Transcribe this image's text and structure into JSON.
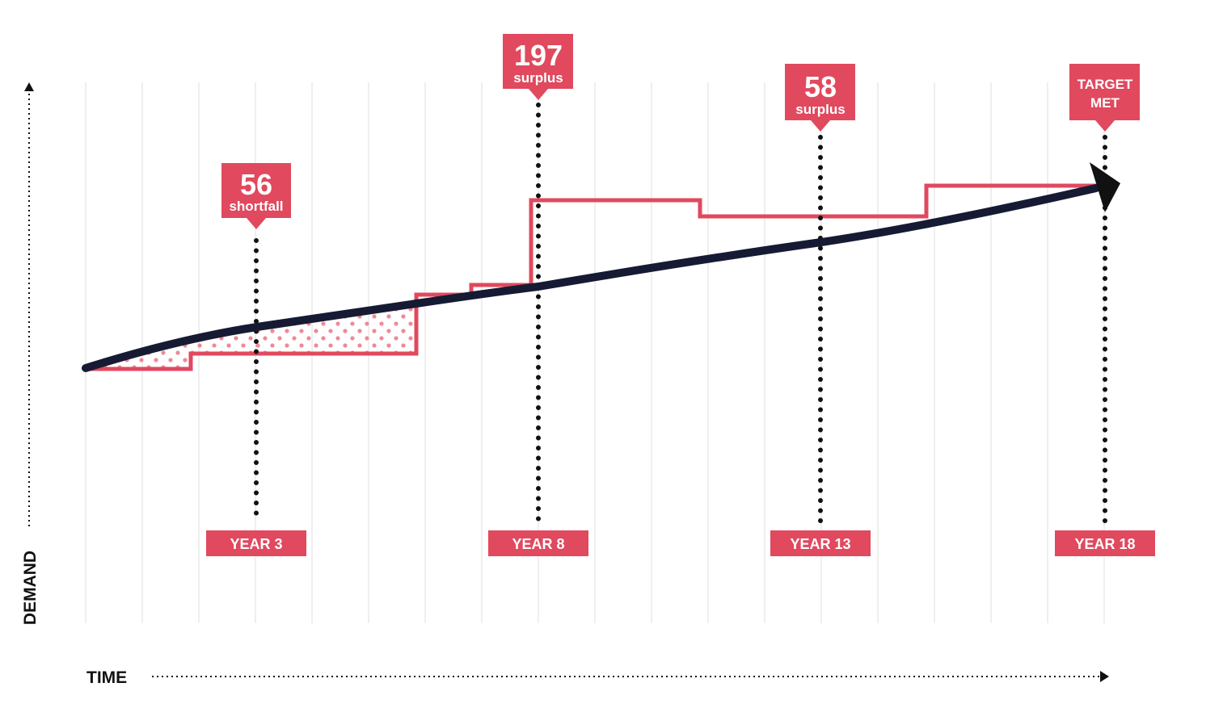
{
  "axes": {
    "y_label": "DEMAND",
    "x_label": "TIME"
  },
  "markers": [
    {
      "year_label": "YEAR 3",
      "value": "56",
      "caption": "shortfall",
      "kind": "shortfall"
    },
    {
      "year_label": "YEAR 8",
      "value": "197",
      "caption": "surplus",
      "kind": "surplus"
    },
    {
      "year_label": "YEAR 13",
      "value": "58",
      "caption": "surplus",
      "kind": "surplus"
    },
    {
      "year_label": "YEAR 18",
      "value": "TARGET",
      "caption": "MET",
      "kind": "target"
    }
  ],
  "colors": {
    "accent": "#e0495e",
    "demand_line": "#161b33",
    "dots": "#111111",
    "shortfall_dots": "#ee8a96"
  }
}
